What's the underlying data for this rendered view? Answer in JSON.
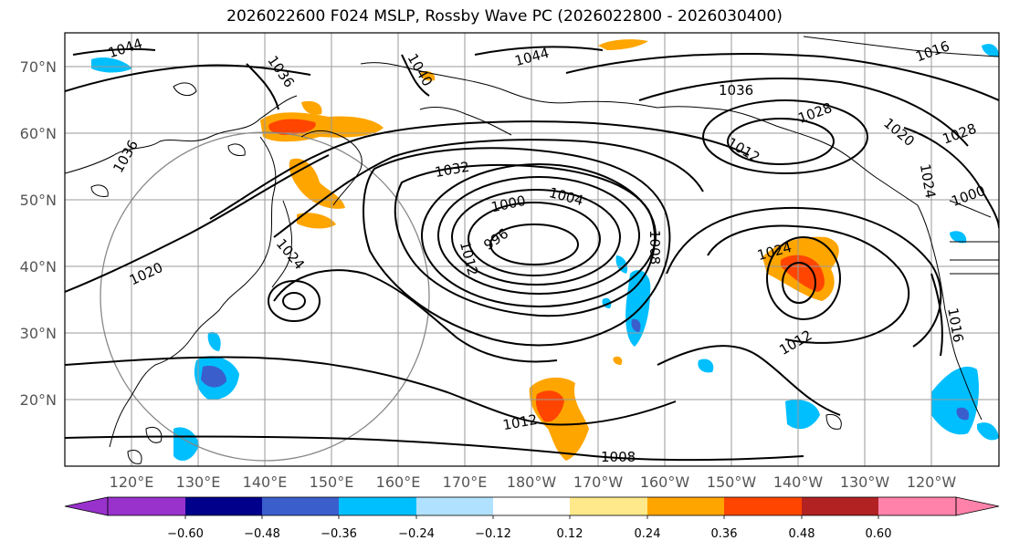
{
  "title": "2026022600 F024 MSLP, Rossby Wave PC (2026022800 - 2026030400)",
  "lat_labels": [
    "70°N",
    "60°N",
    "50°N",
    "40°N",
    "30°N",
    "20°N"
  ],
  "lon_labels": [
    "120°E",
    "130°E",
    "140°E",
    "150°E",
    "160°E",
    "170°E",
    "180°W",
    "170°W",
    "160°W",
    "150°W",
    "140°W",
    "130°W",
    "120°W"
  ],
  "contour_labels": [
    "1044",
    "1044",
    "1040",
    "1036",
    "1036",
    "1036",
    "1032",
    "1028",
    "1028",
    "1024",
    "1024",
    "1020",
    "1020",
    "1016",
    "1012",
    "1012",
    "1012",
    "1012",
    "1008",
    "1008",
    "1004",
    "1000",
    "1000",
    "996",
    "1016",
    "1024"
  ],
  "colorbar": {
    "ticks": [
      "−0.60",
      "−0.48",
      "−0.36",
      "−0.24",
      "−0.12",
      "0.12",
      "0.24",
      "0.36",
      "0.48",
      "0.60"
    ],
    "colors": [
      "#9932cc",
      "#00008b",
      "#3a5fcd",
      "#00bfff",
      "#b0e2ff",
      "#ffffff",
      "#ffe98a",
      "#ffa500",
      "#ff4500",
      "#b22222",
      "#ff82ab"
    ]
  },
  "colors": {
    "grid": "#999999",
    "contour": "#000000",
    "coast": "#000000"
  }
}
